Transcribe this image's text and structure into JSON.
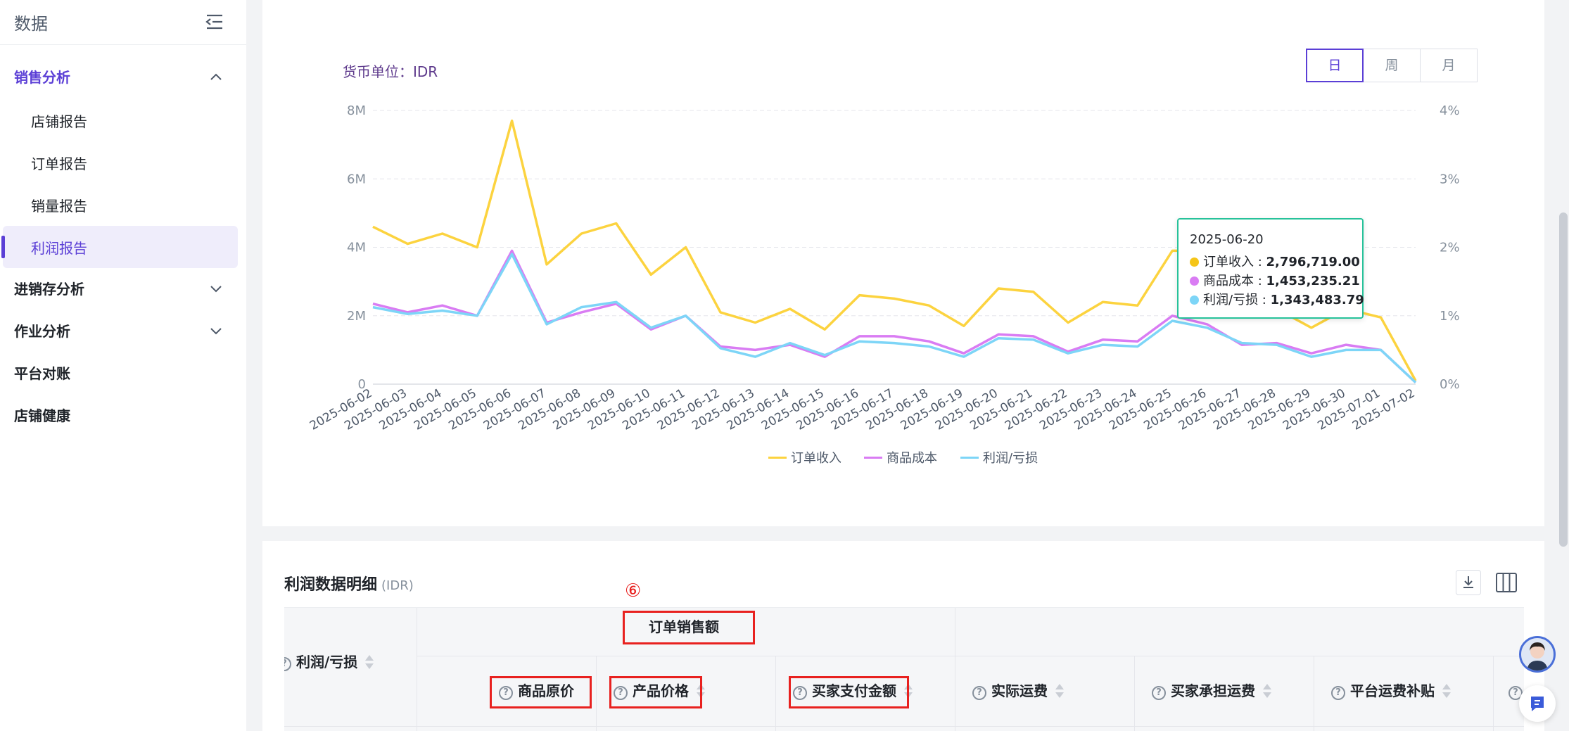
{
  "sidebar": {
    "title": "数据",
    "groups": [
      {
        "label": "销售分析",
        "expanded": true,
        "items": [
          "店铺报告",
          "订单报告",
          "销量报告",
          "利润报告"
        ],
        "active_item": "利润报告"
      },
      {
        "label": "进销存分析",
        "expanded": false
      },
      {
        "label": "作业分析",
        "expanded": false
      },
      {
        "label": "平台对账"
      },
      {
        "label": "店铺健康"
      }
    ]
  },
  "chart_section": {
    "currency_label": "货币单位：IDR",
    "period_tabs": [
      "日",
      "周",
      "月"
    ],
    "active_period": "日"
  },
  "chart_data": {
    "type": "line",
    "y_left_ticks": [
      "8M",
      "6M",
      "4M",
      "2M",
      "0"
    ],
    "y_right_ticks": [
      "4%",
      "3%",
      "2%",
      "1%",
      "0%"
    ],
    "ylim": [
      0,
      8000000
    ],
    "grid": true,
    "legend_position": "bottom",
    "x": [
      "2025-06-02",
      "2025-06-03",
      "2025-06-04",
      "2025-06-05",
      "2025-06-06",
      "2025-06-07",
      "2025-06-08",
      "2025-06-09",
      "2025-06-10",
      "2025-06-11",
      "2025-06-12",
      "2025-06-13",
      "2025-06-14",
      "2025-06-15",
      "2025-06-16",
      "2025-06-17",
      "2025-06-18",
      "2025-06-19",
      "2025-06-20",
      "2025-06-21",
      "2025-06-22",
      "2025-06-23",
      "2025-06-24",
      "2025-06-25",
      "2025-06-26",
      "2025-06-27",
      "2025-06-28",
      "2025-06-29",
      "2025-06-30",
      "2025-07-01",
      "2025-07-02"
    ],
    "series": [
      {
        "name": "订单收入",
        "color": "#fcd33f",
        "values": [
          4600000,
          4100000,
          4400000,
          4000000,
          7700000,
          3500000,
          4400000,
          4700000,
          3200000,
          4000000,
          2100000,
          1800000,
          2200000,
          1600000,
          2600000,
          2500000,
          2300000,
          1700000,
          2796719,
          2700000,
          1800000,
          2400000,
          2300000,
          3900000,
          3900000,
          3000000,
          2200000,
          1650000,
          2200000,
          1950000,
          100000
        ]
      },
      {
        "name": "商品成本",
        "color": "#d97cf3",
        "values": [
          2350000,
          2100000,
          2300000,
          2000000,
          3900000,
          1800000,
          2100000,
          2350000,
          1600000,
          2000000,
          1100000,
          1000000,
          1150000,
          800000,
          1400000,
          1400000,
          1250000,
          900000,
          1453235,
          1400000,
          950000,
          1300000,
          1250000,
          2000000,
          1750000,
          1150000,
          1200000,
          900000,
          1150000,
          1000000,
          50000
        ]
      },
      {
        "name": "利润/亏损",
        "color": "#7dd5f7",
        "values": [
          2250000,
          2050000,
          2150000,
          2000000,
          3800000,
          1750000,
          2250000,
          2400000,
          1650000,
          2000000,
          1050000,
          800000,
          1200000,
          850000,
          1250000,
          1200000,
          1100000,
          800000,
          1343484,
          1300000,
          900000,
          1150000,
          1100000,
          1850000,
          1650000,
          1200000,
          1150000,
          800000,
          1000000,
          1000000,
          50000
        ]
      }
    ]
  },
  "tooltip": {
    "date": "2025-06-20",
    "rows": [
      {
        "label": "订单收入 : ",
        "value": "2,796,719.00",
        "color": "#fcd33f"
      },
      {
        "label": "商品成本 : ",
        "value": "1,453,235.21",
        "color": "#d97cf3"
      },
      {
        "label": "利润/亏损 : ",
        "value": "1,343,483.79",
        "color": "#7dd5f7"
      }
    ]
  },
  "table_section": {
    "title": "利润数据明细",
    "unit": "(IDR)",
    "step_marker": "⑥",
    "group_header": "订单销售额",
    "columns": {
      "profit": "利润/亏损",
      "original_price": "商品原价",
      "product_price": "产品价格",
      "buyer_paid": "买家支付金额",
      "actual_shipping": "实际运费",
      "buyer_shipping": "买家承担运费",
      "platform_subsidy": "平台运费补贴"
    }
  }
}
